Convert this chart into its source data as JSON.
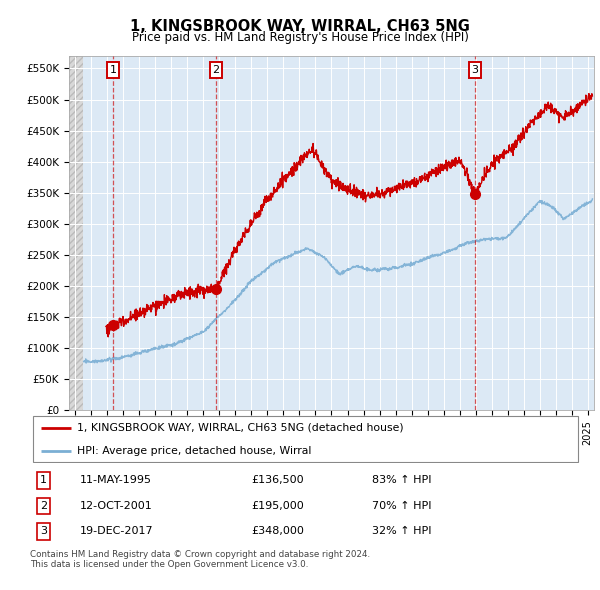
{
  "title": "1, KINGSBROOK WAY, WIRRAL, CH63 5NG",
  "subtitle": "Price paid vs. HM Land Registry's House Price Index (HPI)",
  "ylim": [
    0,
    570000
  ],
  "yticks": [
    0,
    50000,
    100000,
    150000,
    200000,
    250000,
    300000,
    350000,
    400000,
    450000,
    500000,
    550000
  ],
  "ytick_labels": [
    "£0",
    "£50K",
    "£100K",
    "£150K",
    "£200K",
    "£250K",
    "£300K",
    "£350K",
    "£400K",
    "£450K",
    "£500K",
    "£550K"
  ],
  "xlim_start": 1992.6,
  "xlim_end": 2025.4,
  "hatch_end": 1993.5,
  "trans_dates": [
    1995.36,
    2001.79,
    2017.97
  ],
  "trans_prices": [
    136500,
    195000,
    348000
  ],
  "trans_labels": [
    "1",
    "2",
    "3"
  ],
  "property_color": "#cc0000",
  "hpi_color": "#7bafd4",
  "grid_color": "#ffffff",
  "bg_hatch_color": "#d8d8d8",
  "bg_plot_color": "#dce9f5",
  "legend_property": "1, KINGSBROOK WAY, WIRRAL, CH63 5NG (detached house)",
  "legend_hpi": "HPI: Average price, detached house, Wirral",
  "table_rows": [
    {
      "num": "1",
      "date": "11-MAY-1995",
      "price": "£136,500",
      "change": "83% ↑ HPI"
    },
    {
      "num": "2",
      "date": "12-OCT-2001",
      "price": "£195,000",
      "change": "70% ↑ HPI"
    },
    {
      "num": "3",
      "date": "19-DEC-2017",
      "price": "£348,000",
      "change": "32% ↑ HPI"
    }
  ],
  "footnote": "Contains HM Land Registry data © Crown copyright and database right 2024.\nThis data is licensed under the Open Government Licence v3.0."
}
